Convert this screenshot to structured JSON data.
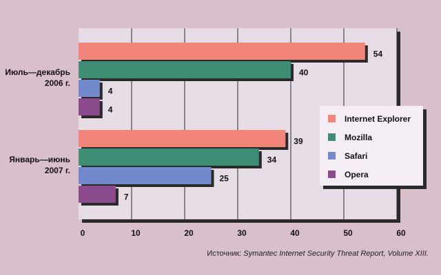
{
  "chart_data": {
    "type": "bar",
    "orientation": "horizontal",
    "categories": [
      [
        "Июль—декабрь",
        "2006 г."
      ],
      [
        "Январь—июнь",
        "2007 г."
      ]
    ],
    "series": [
      {
        "name": "Internet Explorer",
        "values": [
          54,
          39
        ],
        "color": "#f2857a"
      },
      {
        "name": "Mozilla",
        "values": [
          40,
          34
        ],
        "color": "#3d8c74"
      },
      {
        "name": "Safari",
        "values": [
          4,
          25
        ],
        "color": "#7289cc"
      },
      {
        "name": "Opera",
        "values": [
          4,
          7
        ],
        "color": "#8a4a8c"
      }
    ],
    "xlim": [
      0,
      60
    ],
    "xticks": [
      0,
      10,
      20,
      30,
      40,
      50,
      60
    ],
    "grid": true,
    "legend_position": "right",
    "source_prefix": "Источник: ",
    "source_italic": "Symantec Internet Security Threat Report, Volume XIII."
  }
}
